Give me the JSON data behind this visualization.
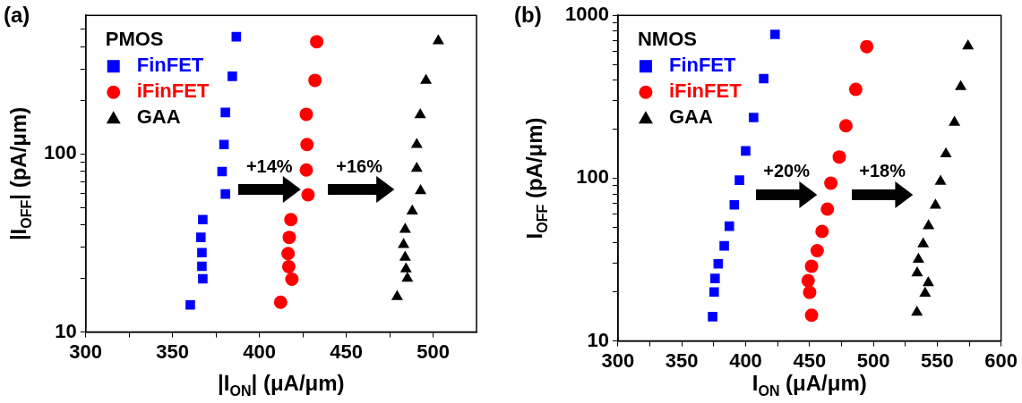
{
  "chart_data": [
    {
      "type": "scatter",
      "title": "(a)",
      "legend_title": "PMOS",
      "xlabel": "|I$_{ON}$| (μA/μm)",
      "ylabel": "|I$_{OFF}$| (pA/μm)",
      "log": "y",
      "grid": false,
      "legend": "top left",
      "xlim": [
        300,
        525
      ],
      "xticks": [
        300,
        {
          "value": 325,
          "label": null
        },
        350,
        {
          "value": 375,
          "label": null
        },
        400,
        {
          "value": 425,
          "label": null
        },
        450,
        {
          "value": 475,
          "label": null
        },
        500
      ],
      "ylim": [
        10,
        600
      ],
      "yticks": [
        10,
        {
          "value": 20,
          "label": null
        },
        {
          "value": 30,
          "label": null
        },
        {
          "value": 40,
          "label": null
        },
        {
          "value": 50,
          "label": null
        },
        {
          "value": 60,
          "label": null
        },
        {
          "value": 70,
          "label": null
        },
        {
          "value": 80,
          "label": null
        },
        {
          "value": 90,
          "label": null
        },
        100,
        {
          "value": 200,
          "label": null
        },
        {
          "value": 300,
          "label": null
        },
        {
          "value": 400,
          "label": null
        },
        {
          "value": 500,
          "label": null
        }
      ],
      "annotations": [
        "+14%",
        "+16%"
      ],
      "series": [
        {
          "name": "FinFET",
          "color": "#0000ff",
          "marker": "square",
          "x": [
            386.7,
            384.4,
            380.4,
            379.6,
            378.5,
            380.4,
            367.4,
            366.3,
            366.9,
            366.9,
            367.4,
            360.2
          ],
          "values": [
            455,
            273,
            171,
            113,
            79.6,
            59.6,
            42.8,
            34,
            27.9,
            23.4,
            19.9,
            14.2
          ]
        },
        {
          "name": "iFinFET",
          "color": "#ff0000",
          "marker": "circle",
          "x": [
            433,
            432,
            427,
            427.4,
            427,
            428,
            418.1,
            417.2,
            416.5,
            416.9,
            418.7,
            412.2
          ],
          "values": [
            427,
            259,
            167,
            113,
            81.3,
            59,
            42.8,
            34,
            27.6,
            23.3,
            19.8,
            14.7
          ]
        },
        {
          "name": "GAA",
          "color": "#000000",
          "marker": "triangle",
          "x": [
            503,
            495.9,
            492.6,
            490.6,
            490.6,
            492.8,
            488,
            483.9,
            483,
            483.9,
            484.4,
            485.2,
            479.3
          ],
          "values": [
            431,
            259,
            166,
            113,
            82.9,
            62.1,
            47.7,
            37.7,
            31,
            26.3,
            22.6,
            20,
            15.8
          ]
        }
      ]
    },
    {
      "type": "scatter",
      "title": "(b)",
      "legend_title": "NMOS",
      "xlabel": "I$_{ON}$ (μA/μm)",
      "ylabel": "I$_{OFF}$ (pA/μm)",
      "log": "y",
      "grid": false,
      "legend": "top left",
      "xlim": [
        300,
        600
      ],
      "xticks": [
        300,
        {
          "value": 325,
          "label": null
        },
        350,
        {
          "value": 375,
          "label": null
        },
        400,
        {
          "value": 425,
          "label": null
        },
        450,
        {
          "value": 475,
          "label": null
        },
        500,
        {
          "value": 525,
          "label": null
        },
        550,
        {
          "value": 575,
          "label": null
        },
        600
      ],
      "ylim": [
        10,
        1000
      ],
      "yticks": [
        10,
        {
          "value": 20,
          "label": null
        },
        {
          "value": 30,
          "label": null
        },
        {
          "value": 40,
          "label": null
        },
        {
          "value": 50,
          "label": null
        },
        {
          "value": 60,
          "label": null
        },
        {
          "value": 70,
          "label": null
        },
        {
          "value": 80,
          "label": null
        },
        {
          "value": 90,
          "label": null
        },
        100,
        {
          "value": 200,
          "label": null
        },
        {
          "value": 300,
          "label": null
        },
        {
          "value": 400,
          "label": null
        },
        {
          "value": 500,
          "label": null
        },
        {
          "value": 600,
          "label": null
        },
        {
          "value": 700,
          "label": null
        },
        {
          "value": 800,
          "label": null
        },
        {
          "value": 900,
          "label": null
        },
        1000
      ],
      "annotations": [
        "+20%",
        "+18%"
      ],
      "series": [
        {
          "name": "FinFET",
          "color": "#0000ff",
          "marker": "square",
          "x": [
            423,
            414.1,
            406.2,
            400,
            395.1,
            391.1,
            387.2,
            383.2,
            378.5,
            376,
            375.3,
            374.1
          ],
          "values": [
            764,
            409,
            236,
            147,
            97.2,
            68.6,
            50.7,
            38.4,
            29.8,
            24.2,
            20,
            14.1
          ]
        },
        {
          "name": "iFinFET",
          "color": "#ff0000",
          "marker": "circle",
          "x": [
            494.8,
            486.2,
            478.5,
            473.3,
            466.7,
            464,
            459.8,
            456,
            451.6,
            448.9,
            450.1,
            451.6
          ],
          "values": [
            643,
            351,
            210,
            135,
            93.3,
            64.6,
            47.1,
            35.9,
            28.8,
            23.5,
            19.9,
            14.4
          ]
        },
        {
          "name": "GAA",
          "color": "#000000",
          "marker": "triangle",
          "x": [
            574.1,
            568.4,
            563.5,
            556.8,
            552.6,
            548.6,
            543.2,
            539,
            535.3,
            534.3,
            543,
            540.5,
            534.1
          ],
          "values": [
            649,
            365,
            220,
            141,
            95.5,
            68.2,
            50.9,
            39.4,
            31.7,
            26.2,
            22.8,
            19.6,
            15
          ]
        }
      ]
    }
  ]
}
